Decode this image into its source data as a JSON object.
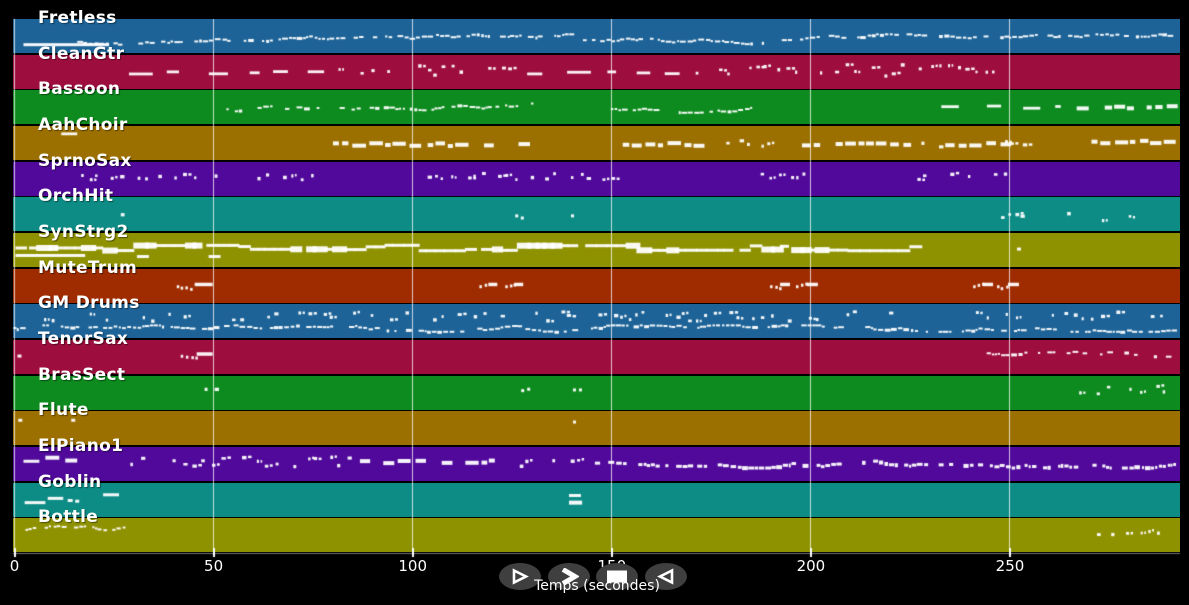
{
  "app": {
    "background": "#000000",
    "note_color": "#ffffff",
    "grid_color": "#e8e8e8",
    "button_color": "#3f3f3f"
  },
  "axis": {
    "title": "Temps (secondes)",
    "ticks": [
      {
        "t": 0,
        "label": "0"
      },
      {
        "t": 50,
        "label": "50"
      },
      {
        "t": 100,
        "label": "100"
      },
      {
        "t": 150,
        "label": "150"
      },
      {
        "t": 200,
        "label": "200"
      },
      {
        "t": 250,
        "label": "250"
      }
    ]
  },
  "transport": {
    "buttons": [
      {
        "id": "play",
        "icon": "play-icon"
      },
      {
        "id": "fast-forward",
        "icon": "fast-forward-icon"
      },
      {
        "id": "stop",
        "icon": "stop-icon"
      },
      {
        "id": "rewind",
        "icon": "rewind-icon"
      }
    ]
  },
  "chart_data": {
    "type": "midi-track-timeline",
    "x_unit": "seconds",
    "x_range": [
      0,
      293
    ],
    "tracks": [
      {
        "name": "Fretless",
        "color": "#1d6397",
        "segments": [
          {
            "s": "bar",
            "t0": 2.5,
            "t1": 24,
            "y": 0.72,
            "h": 3
          },
          {
            "s": "wiggle",
            "t0": 16,
            "t1": 140,
            "y": 0.6,
            "amp": 0.17
          },
          {
            "s": "wiggle",
            "t0": 143,
            "t1": 292,
            "y": 0.6,
            "amp": 0.17
          }
        ]
      },
      {
        "name": "CleanGtr",
        "color": "#9d0e3e",
        "segments": [
          {
            "s": "dash",
            "t0": 29,
            "t1": 78,
            "y": 0.5
          },
          {
            "s": "dots",
            "t0": 79,
            "t1": 128,
            "y": 0.44,
            "amp": 0.16,
            "d": 0.55
          },
          {
            "s": "dash",
            "t0": 129,
            "t1": 172,
            "y": 0.5
          },
          {
            "s": "dots",
            "t0": 173,
            "t1": 251,
            "y": 0.44,
            "amp": 0.16,
            "d": 0.55
          }
        ]
      },
      {
        "name": "Bassoon",
        "color": "#0e8b1f",
        "segments": [
          {
            "s": "wiggle",
            "t0": 52,
            "t1": 130,
            "y": 0.5,
            "amp": 0.13,
            "skip": 0.25
          },
          {
            "s": "dots",
            "t0": 133,
            "t1": 148,
            "y": 0.48,
            "amp": 0.1,
            "d": 0.3
          },
          {
            "s": "wiggle",
            "t0": 150,
            "t1": 185,
            "y": 0.5,
            "amp": 0.13,
            "skip": 0.25
          },
          {
            "s": "dash",
            "t0": 233,
            "t1": 263,
            "y": 0.48
          },
          {
            "s": "blocks",
            "t0": 267,
            "t1": 290,
            "y": 0.48
          }
        ]
      },
      {
        "name": "AahChoir",
        "color": "#9c7000",
        "segments": [
          {
            "s": "dash",
            "t0": 12,
            "t1": 20,
            "y": 0.22
          },
          {
            "s": "blocks",
            "t0": 78,
            "t1": 100,
            "y": 0.52
          },
          {
            "s": "blocks",
            "t0": 104,
            "t1": 129,
            "y": 0.52
          },
          {
            "s": "blocks",
            "t0": 153,
            "t1": 176,
            "y": 0.52
          },
          {
            "s": "dots",
            "t0": 179,
            "t1": 197,
            "y": 0.5,
            "amp": 0.12,
            "d": 0.35
          },
          {
            "s": "blocks",
            "t0": 198,
            "t1": 225,
            "y": 0.52
          },
          {
            "s": "dots",
            "t0": 228,
            "t1": 233,
            "y": 0.5,
            "amp": 0.1,
            "d": 0.4
          },
          {
            "s": "blocks",
            "t0": 234,
            "t1": 248,
            "y": 0.52
          },
          {
            "s": "dots",
            "t0": 249,
            "t1": 255,
            "y": 0.5,
            "amp": 0.1,
            "d": 0.4
          },
          {
            "s": "blocks",
            "t0": 267,
            "t1": 290,
            "y": 0.45
          }
        ]
      },
      {
        "name": "SprnoSax",
        "color": "#50099a",
        "segments": [
          {
            "s": "dots",
            "t0": 17,
            "t1": 76,
            "y": 0.42,
            "amp": 0.09,
            "d": 0.55
          },
          {
            "s": "dots",
            "t0": 104,
            "t1": 151,
            "y": 0.42,
            "amp": 0.09,
            "d": 0.55
          },
          {
            "s": "dots",
            "t0": 182,
            "t1": 202,
            "y": 0.42,
            "amp": 0.09,
            "d": 0.55
          },
          {
            "s": "dots",
            "t0": 227,
            "t1": 251,
            "y": 0.42,
            "amp": 0.09,
            "d": 0.45
          }
        ]
      },
      {
        "name": "OrchHit",
        "color": "#0d8c85",
        "segments": [
          {
            "s": "dots",
            "t0": 25,
            "t1": 29,
            "y": 0.5,
            "amp": 0.12,
            "d": 0.8
          },
          {
            "s": "dot",
            "t0": 126,
            "y": 0.52
          },
          {
            "s": "dot",
            "t0": 127.4,
            "y": 0.58
          },
          {
            "s": "dot",
            "t0": 140,
            "y": 0.52
          },
          {
            "s": "dots",
            "t0": 248,
            "t1": 254,
            "y": 0.5,
            "amp": 0.1,
            "d": 0.7
          },
          {
            "s": "dots",
            "t0": 263,
            "t1": 290,
            "y": 0.52,
            "amp": 0.16,
            "d": 0.28
          }
        ]
      },
      {
        "name": "SynStrg2",
        "color": "#8f9200",
        "segments": [
          {
            "s": "line",
            "t0": 0.5,
            "t1": 226,
            "y": 0.42,
            "h": 3
          },
          {
            "s": "bar",
            "t0": 0.5,
            "t1": 18,
            "y": 0.63,
            "h": 3
          },
          {
            "s": "bar",
            "t0": 31,
            "t1": 34,
            "y": 0.66,
            "h": 3
          },
          {
            "s": "bar",
            "t0": 49,
            "t1": 52,
            "y": 0.66,
            "h": 3
          },
          {
            "s": "dot",
            "t0": 252,
            "y": 0.45,
            "w": 4
          }
        ]
      },
      {
        "name": "MuteTrum",
        "color": "#9e2c00",
        "segments": [
          {
            "s": "phrase",
            "t0": 41,
            "t1": 50,
            "y": 0.45
          },
          {
            "s": "phrase",
            "t0": 117,
            "t1": 121.5,
            "y": 0.45
          },
          {
            "s": "phrase",
            "t0": 123.5,
            "t1": 128,
            "y": 0.45
          },
          {
            "s": "phrase",
            "t0": 190,
            "t1": 195,
            "y": 0.45
          },
          {
            "s": "phrase",
            "t0": 196.5,
            "t1": 202,
            "y": 0.45
          },
          {
            "s": "phrase",
            "t0": 241,
            "t1": 246,
            "y": 0.45
          },
          {
            "s": "phrase",
            "t0": 247,
            "t1": 252.5,
            "y": 0.45
          }
        ]
      },
      {
        "name": "GM Drums",
        "color": "#1d6397",
        "segments": [
          {
            "s": "dots",
            "t0": 0,
            "t1": 142,
            "y": 0.34,
            "amp": 0.13,
            "d": 0.45
          },
          {
            "s": "dots",
            "t0": 145,
            "t1": 292,
            "y": 0.34,
            "amp": 0.13,
            "d": 0.45
          },
          {
            "s": "wiggle",
            "t0": 0,
            "t1": 142,
            "y": 0.68,
            "amp": 0.09,
            "skip": 0.1
          },
          {
            "s": "wiggle",
            "t0": 145,
            "t1": 292,
            "y": 0.68,
            "amp": 0.09,
            "skip": 0.1
          }
        ]
      },
      {
        "name": "TenorSax",
        "color": "#9d0e3e",
        "segments": [
          {
            "s": "dot",
            "t0": 1,
            "y": 0.45,
            "w": 4
          },
          {
            "s": "phrase",
            "t0": 42,
            "t1": 50,
            "y": 0.4
          },
          {
            "s": "wiggle",
            "t0": 236,
            "t1": 291,
            "y": 0.45,
            "amp": 0.15,
            "skip": 0.35
          }
        ]
      },
      {
        "name": "BrasSect",
        "color": "#0e8b1f",
        "segments": [
          {
            "s": "dots",
            "t0": 48,
            "t1": 53,
            "y": 0.42,
            "amp": 0.07,
            "d": 0.8
          },
          {
            "s": "dot",
            "t0": 127.5,
            "y": 0.42
          },
          {
            "s": "dot",
            "t0": 129,
            "y": 0.38
          },
          {
            "s": "dot",
            "t0": 140.5,
            "y": 0.4
          },
          {
            "s": "dot",
            "t0": 142,
            "y": 0.4
          },
          {
            "s": "dots",
            "t0": 263,
            "t1": 290,
            "y": 0.42,
            "amp": 0.12,
            "d": 0.4
          }
        ]
      },
      {
        "name": "Flute",
        "color": "#9c7000",
        "segments": [
          {
            "s": "dot",
            "t0": 1.2,
            "y": 0.25,
            "w": 4
          },
          {
            "s": "dot",
            "t0": 14.5,
            "y": 0.25,
            "w": 4
          },
          {
            "s": "dot",
            "t0": 140.5,
            "y": 0.3,
            "w": 3
          }
        ]
      },
      {
        "name": "ElPiano1",
        "color": "#50099a",
        "segments": [
          {
            "s": "bar",
            "t0": 2.5,
            "t1": 6.5,
            "y": 0.4,
            "h": 3
          },
          {
            "s": "bar",
            "t0": 8,
            "t1": 11.5,
            "y": 0.3,
            "h": 4
          },
          {
            "s": "bar",
            "t0": 13,
            "t1": 16,
            "y": 0.38,
            "h": 4
          },
          {
            "s": "dots",
            "t0": 28,
            "t1": 87,
            "y": 0.42,
            "amp": 0.14,
            "d": 0.55
          },
          {
            "s": "blocks",
            "t0": 87,
            "t1": 125,
            "y": 0.42
          },
          {
            "s": "dots",
            "t0": 125,
            "t1": 146,
            "y": 0.45,
            "amp": 0.1,
            "d": 0.45
          },
          {
            "s": "wiggle",
            "t0": 146,
            "t1": 292,
            "y": 0.42,
            "amp": 0.17,
            "th": 3,
            "skip": 0.08
          }
        ]
      },
      {
        "name": "Goblin",
        "color": "#0d8c85",
        "segments": [
          {
            "s": "bar",
            "t0": 2.8,
            "t1": 8,
            "y": 0.56,
            "h": 3
          },
          {
            "s": "bar",
            "t0": 8.6,
            "t1": 12.5,
            "y": 0.44,
            "h": 3
          },
          {
            "s": "dot",
            "t0": 13.6,
            "y": 0.5,
            "w": 5
          },
          {
            "s": "dot",
            "t0": 15.5,
            "y": 0.52,
            "w": 4
          },
          {
            "s": "bar",
            "t0": 22.5,
            "t1": 26.5,
            "y": 0.34,
            "h": 3
          },
          {
            "s": "bar",
            "t0": 139.5,
            "t1": 142.5,
            "y": 0.36,
            "h": 3
          },
          {
            "s": "bar",
            "t0": 139.5,
            "t1": 142.8,
            "y": 0.56,
            "h": 4
          }
        ]
      },
      {
        "name": "Bottle",
        "color": "#8f9200",
        "segments": [
          {
            "s": "wiggle",
            "t0": 3,
            "t1": 27.5,
            "y": 0.32,
            "amp": 0.1,
            "skip": 0.2
          },
          {
            "s": "dots",
            "t0": 265,
            "t1": 290,
            "y": 0.38,
            "amp": 0.08,
            "d": 0.6
          }
        ]
      }
    ]
  }
}
